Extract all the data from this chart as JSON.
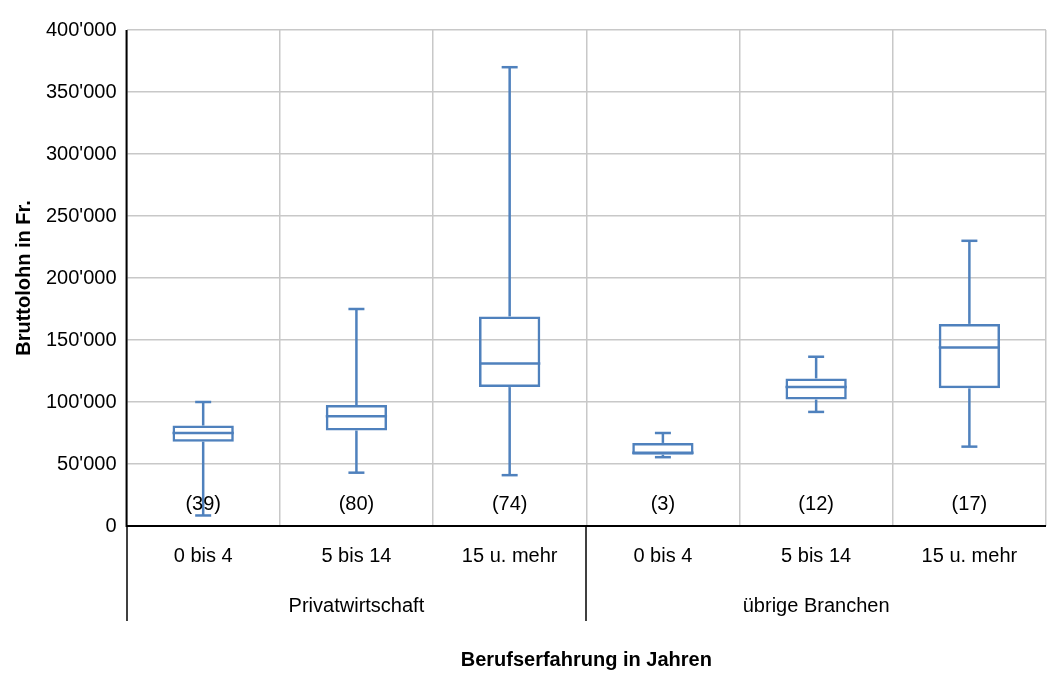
{
  "chart_data": {
    "type": "box",
    "xlabel": "Berufserfahrung in Jahren",
    "ylabel": "Bruttolohn in Fr.",
    "color": "#4f81bd",
    "grid": true,
    "categories": [
      "0 bis 4",
      "5 bis 14",
      "15 u. mehr",
      "0 bis 4",
      "5 bis 14",
      "15 u. mehr"
    ],
    "boxes": [
      {
        "low": 8500,
        "q1": 68000,
        "median": 75000,
        "q3": 81000,
        "high": 100000
      },
      {
        "low": 43000,
        "q1": 77000,
        "median": 88500,
        "q3": 97500,
        "high": 175000
      },
      {
        "low": 41000,
        "q1": 112000,
        "median": 131000,
        "q3": 169000,
        "high": 370000
      },
      {
        "low": 55500,
        "q1": 57500,
        "median": 59000,
        "q3": 67000,
        "high": 75000
      },
      {
        "low": 92000,
        "q1": 102000,
        "median": 112000,
        "q3": 119000,
        "high": 136500
      },
      {
        "low": 64000,
        "q1": 111000,
        "median": 144000,
        "q3": 163000,
        "high": 230000
      }
    ],
    "ylim": [
      0,
      400000
    ],
    "yticks": [
      0,
      {
        "value": 50000,
        "label": "50'000"
      },
      {
        "value": 100000,
        "label": "100'000"
      },
      {
        "value": 150000,
        "label": "150'000"
      },
      {
        "value": 200000,
        "label": "200'000"
      },
      {
        "value": 250000,
        "label": "250'000"
      },
      {
        "value": 300000,
        "label": "300'000"
      },
      {
        "value": 350000,
        "label": "350'000"
      },
      {
        "value": 400000,
        "label": "400'000"
      }
    ],
    "annotations": [
      "(39)",
      "(80)",
      "(74)",
      "(3)",
      "(12)",
      "(17)",
      "Privatwirtschaft",
      "übrige Branchen"
    ]
  }
}
